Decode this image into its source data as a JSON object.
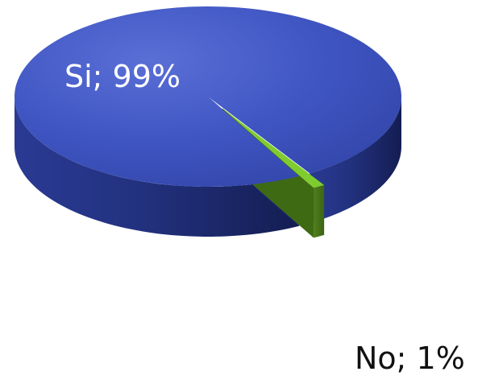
{
  "chart_data": {
    "type": "pie",
    "style": "3d-exploded",
    "slices": [
      {
        "label": "Si",
        "value": 99,
        "display": "Si; 99%",
        "color": "#3d52bf"
      },
      {
        "label": "No",
        "value": 1,
        "display": "No; 1%",
        "color": "#7fcc2e"
      }
    ],
    "title": "",
    "legend": "none"
  }
}
